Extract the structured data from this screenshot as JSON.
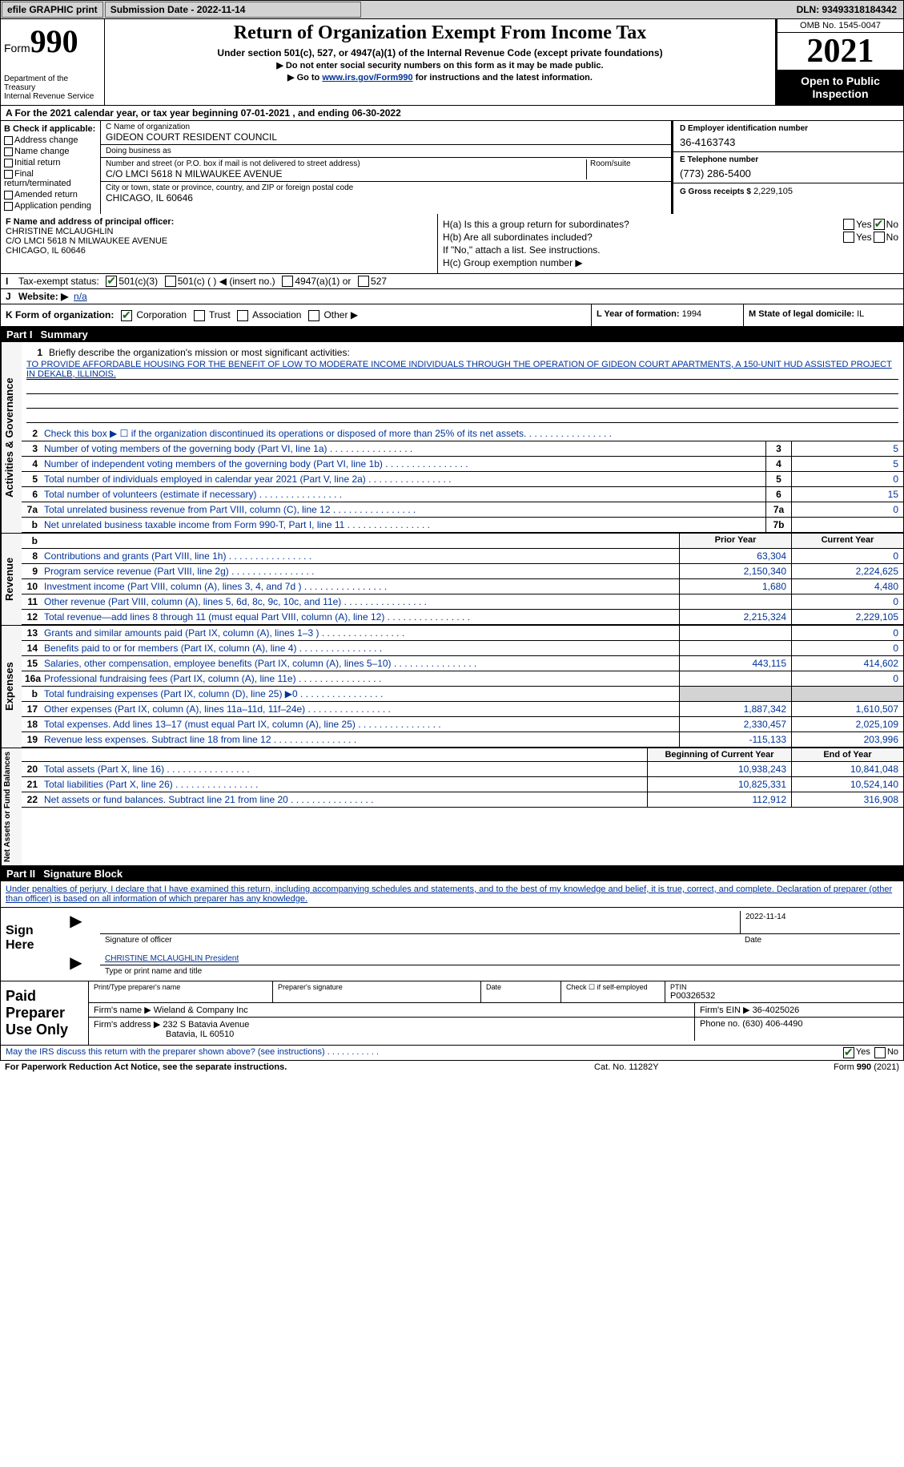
{
  "topbar": {
    "efile_label": "efile GRAPHIC print",
    "submission_label": "Submission Date - 2022-11-14",
    "dln": "DLN: 93493318184342"
  },
  "header": {
    "form_label": "Form",
    "form_number": "990",
    "dept": "Department of the Treasury",
    "irs": "Internal Revenue Service",
    "title": "Return of Organization Exempt From Income Tax",
    "subtitle": "Under section 501(c), 527, or 4947(a)(1) of the Internal Revenue Code (except private foundations)",
    "note1_arrow": "▶",
    "note1": "Do not enter social security numbers on this form as it may be made public.",
    "note2_pre": "▶ Go to ",
    "note2_link": "www.irs.gov/Form990",
    "note2_post": " for instructions and the latest information.",
    "omb": "OMB No. 1545-0047",
    "year": "2021",
    "inspection": "Open to Public Inspection"
  },
  "a": {
    "label": "A For the 2021 calendar year, or tax year beginning 07-01-2021    , and ending 06-30-2022"
  },
  "b": {
    "hdr": "B Check if applicable:",
    "opts": [
      "Address change",
      "Name change",
      "Initial return",
      "Final return/terminated",
      "Amended return",
      "Application pending"
    ]
  },
  "c": {
    "name_lbl": "C Name of organization",
    "name": "GIDEON COURT RESIDENT COUNCIL",
    "dba_lbl": "Doing business as",
    "dba": "",
    "street_lbl": "Number and street (or P.O. box if mail is not delivered to street address)",
    "room_lbl": "Room/suite",
    "street": "C/O LMCI 5618 N MILWAUKEE AVENUE",
    "city_lbl": "City or town, state or province, country, and ZIP or foreign postal code",
    "city": "CHICAGO, IL  60646"
  },
  "d": {
    "lbl": "D Employer identification number",
    "val": "36-4163743"
  },
  "e": {
    "lbl": "E Telephone number",
    "val": "(773) 286-5400"
  },
  "g": {
    "lbl": "G Gross receipts $",
    "val": "2,229,105"
  },
  "f": {
    "lbl": "F  Name and address of principal officer:",
    "name": "CHRISTINE MCLAUGHLIN",
    "street": "C/O LMCI 5618 N MILWAUKEE AVENUE",
    "city": "CHICAGO, IL  60646"
  },
  "h": {
    "a_lbl": "H(a)  Is this a group return for subordinates?",
    "b_lbl": "H(b)  Are all subordinates included?",
    "b_note": "If \"No,\" attach a list. See instructions.",
    "c_lbl": "H(c)  Group exemption number ▶",
    "yes": "Yes",
    "no": "No"
  },
  "i": {
    "k": "I",
    "lbl": "Tax-exempt status:",
    "o1": "501(c)(3)",
    "o2": "501(c) (  ) ◀ (insert no.)",
    "o3": "4947(a)(1) or",
    "o4": "527"
  },
  "j": {
    "k": "J",
    "lbl": "Website: ▶",
    "val": "n/a"
  },
  "k": {
    "lbl": "K Form of organization:",
    "o1": "Corporation",
    "o2": "Trust",
    "o3": "Association",
    "o4": "Other ▶"
  },
  "l": {
    "lbl": "L Year of formation:",
    "val": "1994"
  },
  "m": {
    "lbl": "M State of legal domicile:",
    "val": "IL"
  },
  "part1": {
    "num": "Part I",
    "title": "Summary"
  },
  "mission": {
    "prompt": "Briefly describe the organization's mission or most significant activities:",
    "text": "TO PROVIDE AFFORDABLE HOUSING FOR THE BENEFIT OF LOW TO MODERATE INCOME INDIVIDUALS THROUGH THE OPERATION OF GIDEON COURT APARTMENTS, A 150-UNIT HUD ASSISTED PROJECT IN DEKALB, ILLINOIS."
  },
  "governance_rows": [
    {
      "n": "2",
      "desc": "Check this box ▶ ☐  if the organization discontinued its operations or disposed of more than 25% of its net assets.",
      "box": "",
      "val": ""
    },
    {
      "n": "3",
      "desc": "Number of voting members of the governing body (Part VI, line 1a)",
      "box": "3",
      "val": "5"
    },
    {
      "n": "4",
      "desc": "Number of independent voting members of the governing body (Part VI, line 1b)",
      "box": "4",
      "val": "5"
    },
    {
      "n": "5",
      "desc": "Total number of individuals employed in calendar year 2021 (Part V, line 2a)",
      "box": "5",
      "val": "0"
    },
    {
      "n": "6",
      "desc": "Total number of volunteers (estimate if necessary)",
      "box": "6",
      "val": "15"
    },
    {
      "n": "7a",
      "desc": "Total unrelated business revenue from Part VIII, column (C), line 12",
      "box": "7a",
      "val": "0"
    },
    {
      "n": "b",
      "desc": "Net unrelated business taxable income from Form 990-T, Part I, line 11",
      "box": "7b",
      "val": ""
    }
  ],
  "col_prior": "Prior Year",
  "col_current": "Current Year",
  "col_begin": "Beginning of Current Year",
  "col_end": "End of Year",
  "revenue_rows": [
    {
      "n": "8",
      "desc": "Contributions and grants (Part VIII, line 1h)",
      "p": "63,304",
      "c": "0"
    },
    {
      "n": "9",
      "desc": "Program service revenue (Part VIII, line 2g)",
      "p": "2,150,340",
      "c": "2,224,625"
    },
    {
      "n": "10",
      "desc": "Investment income (Part VIII, column (A), lines 3, 4, and 7d )",
      "p": "1,680",
      "c": "4,480"
    },
    {
      "n": "11",
      "desc": "Other revenue (Part VIII, column (A), lines 5, 6d, 8c, 9c, 10c, and 11e)",
      "p": "",
      "c": "0"
    },
    {
      "n": "12",
      "desc": "Total revenue—add lines 8 through 11 (must equal Part VIII, column (A), line 12)",
      "p": "2,215,324",
      "c": "2,229,105"
    }
  ],
  "expense_rows": [
    {
      "n": "13",
      "desc": "Grants and similar amounts paid (Part IX, column (A), lines 1–3 )",
      "p": "",
      "c": "0"
    },
    {
      "n": "14",
      "desc": "Benefits paid to or for members (Part IX, column (A), line 4)",
      "p": "",
      "c": "0"
    },
    {
      "n": "15",
      "desc": "Salaries, other compensation, employee benefits (Part IX, column (A), lines 5–10)",
      "p": "443,115",
      "c": "414,602"
    },
    {
      "n": "16a",
      "desc": "Professional fundraising fees (Part IX, column (A), line 11e)",
      "p": "",
      "c": "0"
    },
    {
      "n": "b",
      "desc": "Total fundraising expenses (Part IX, column (D), line 25) ▶0",
      "p": "grey",
      "c": "grey"
    },
    {
      "n": "17",
      "desc": "Other expenses (Part IX, column (A), lines 11a–11d, 11f–24e)",
      "p": "1,887,342",
      "c": "1,610,507"
    },
    {
      "n": "18",
      "desc": "Total expenses. Add lines 13–17 (must equal Part IX, column (A), line 25)",
      "p": "2,330,457",
      "c": "2,025,109"
    },
    {
      "n": "19",
      "desc": "Revenue less expenses. Subtract line 18 from line 12",
      "p": "-115,133",
      "c": "203,996"
    }
  ],
  "net_rows": [
    {
      "n": "20",
      "desc": "Total assets (Part X, line 16)",
      "p": "10,938,243",
      "c": "10,841,048"
    },
    {
      "n": "21",
      "desc": "Total liabilities (Part X, line 26)",
      "p": "10,825,331",
      "c": "10,524,140"
    },
    {
      "n": "22",
      "desc": "Net assets or fund balances. Subtract line 21 from line 20",
      "p": "112,912",
      "c": "316,908"
    }
  ],
  "vtabs": {
    "gov": "Activities & Governance",
    "rev": "Revenue",
    "exp": "Expenses",
    "net": "Net Assets or Fund Balances"
  },
  "part2": {
    "num": "Part II",
    "title": "Signature Block"
  },
  "sig": {
    "intro": "Under penalties of perjury, I declare that I have examined this return, including accompanying schedules and statements, and to the best of my knowledge and belief, it is true, correct, and complete. Declaration of preparer (other than officer) is based on all information of which preparer has any knowledge.",
    "sign_here": "Sign Here",
    "sig_of_officer": "Signature of officer",
    "date_lbl": "Date",
    "date_val": "2022-11-14",
    "name": "CHRISTINE MCLAUGHLIN  President",
    "name_lbl": "Type or print name and title"
  },
  "prep": {
    "title": "Paid Preparer Use Only",
    "name_lbl": "Print/Type preparer's name",
    "sig_lbl": "Preparer's signature",
    "date_lbl": "Date",
    "check_lbl": "Check ☐ if self-employed",
    "ptin_lbl": "PTIN",
    "ptin": "P00326532",
    "firm_name_lbl": "Firm's name    ▶",
    "firm_name": "Wieland & Company Inc",
    "firm_ein_lbl": "Firm's EIN ▶",
    "firm_ein": "36-4025026",
    "firm_addr_lbl": "Firm's address ▶",
    "firm_addr1": "232 S Batavia Avenue",
    "firm_addr2": "Batavia, IL  60510",
    "phone_lbl": "Phone no.",
    "phone": "(630) 406-4490"
  },
  "discuss": {
    "q": "May the IRS discuss this return with the preparer shown above? (see instructions)",
    "yes": "Yes",
    "no": "No"
  },
  "footer": {
    "l": "For Paperwork Reduction Act Notice, see the separate instructions.",
    "m": "Cat. No. 11282Y",
    "r": "Form 990 (2021)"
  }
}
